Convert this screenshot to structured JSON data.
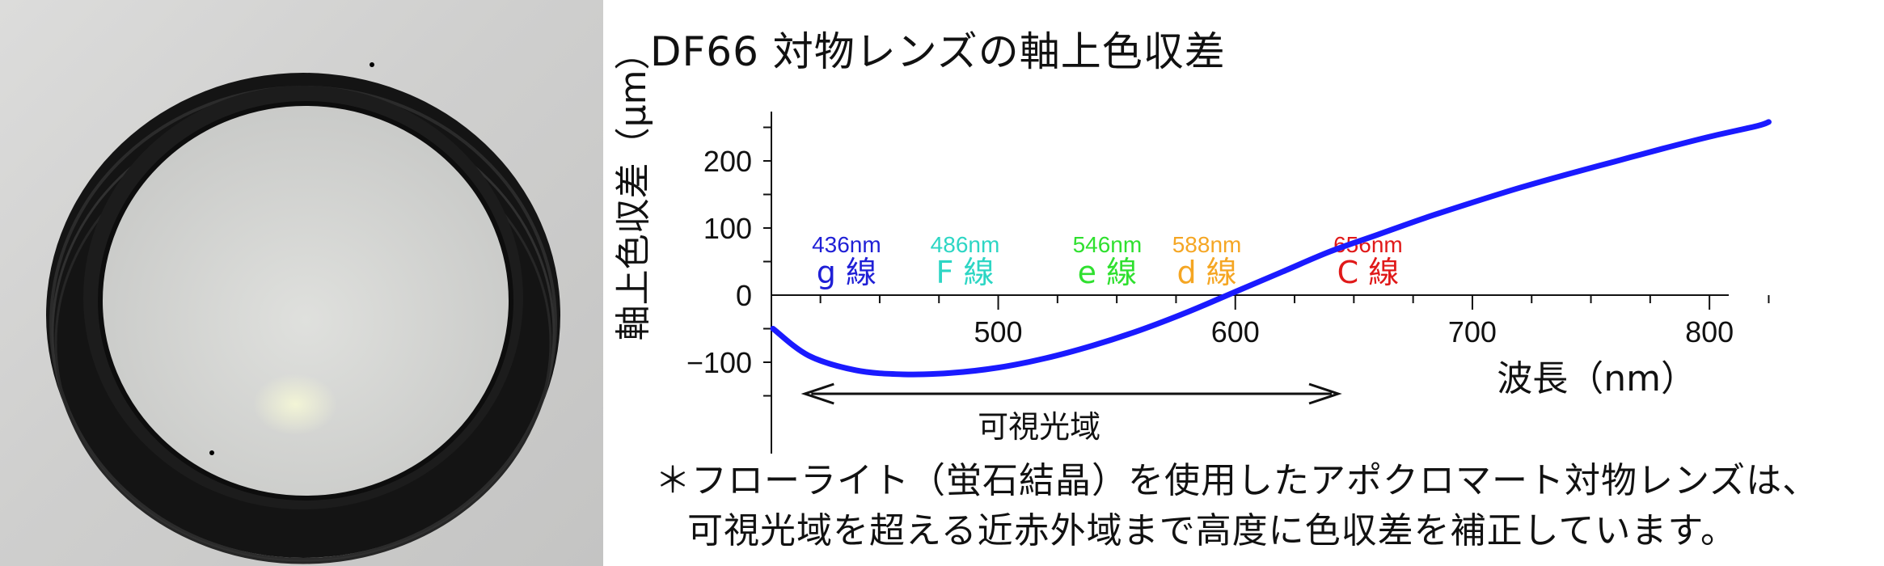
{
  "photo": {
    "subject": "objective lens element in black ring mount"
  },
  "chart_data": {
    "type": "line",
    "title": "DF66 対物レンズの軸上色収差",
    "xlabel": "波長（nm）",
    "ylabel": "軸上色収差（μm）",
    "xlim": [
      405,
      830
    ],
    "ylim": [
      -200,
      300
    ],
    "x_ticks": [
      500,
      600,
      700,
      800
    ],
    "y_ticks": [
      -100,
      0,
      100,
      200
    ],
    "series": [
      {
        "color": "#1a1aff",
        "x": [
          405,
          420,
          440,
          460,
          480,
          500,
          520,
          540,
          560,
          580,
          600,
          620,
          640,
          660,
          680,
          700,
          720,
          740,
          760,
          780,
          800,
          820,
          825
        ],
        "y": [
          -50,
          -90,
          -112,
          -118,
          -116,
          -108,
          -94,
          -75,
          -52,
          -25,
          5,
          35,
          65,
          90,
          115,
          138,
          160,
          180,
          199,
          218,
          236,
          252,
          258
        ]
      }
    ],
    "spectral_lines": [
      {
        "wavelength": 436,
        "nm_label": "436nm",
        "line_label": "g 線",
        "color": "#1f1fd6"
      },
      {
        "wavelength": 486,
        "nm_label": "486nm",
        "line_label": "F 線",
        "color": "#2dd6c4"
      },
      {
        "wavelength": 546,
        "nm_label": "546nm",
        "line_label": "e 線",
        "color": "#2fe02f"
      },
      {
        "wavelength": 588,
        "nm_label": "588nm",
        "line_label": "d 線",
        "color": "#f5a623"
      },
      {
        "wavelength": 656,
        "nm_label": "656nm",
        "line_label": "C 線",
        "color": "#e01919"
      }
    ],
    "visible_range": {
      "label": "可視光域",
      "from": 415,
      "to": 640
    }
  },
  "footnote": {
    "line1": "＊フローライト（蛍石結晶）を使用したアポクロマート対物レンズは、",
    "line2": "可視光域を超える近赤外域まで高度に色収差を補正しています。"
  }
}
